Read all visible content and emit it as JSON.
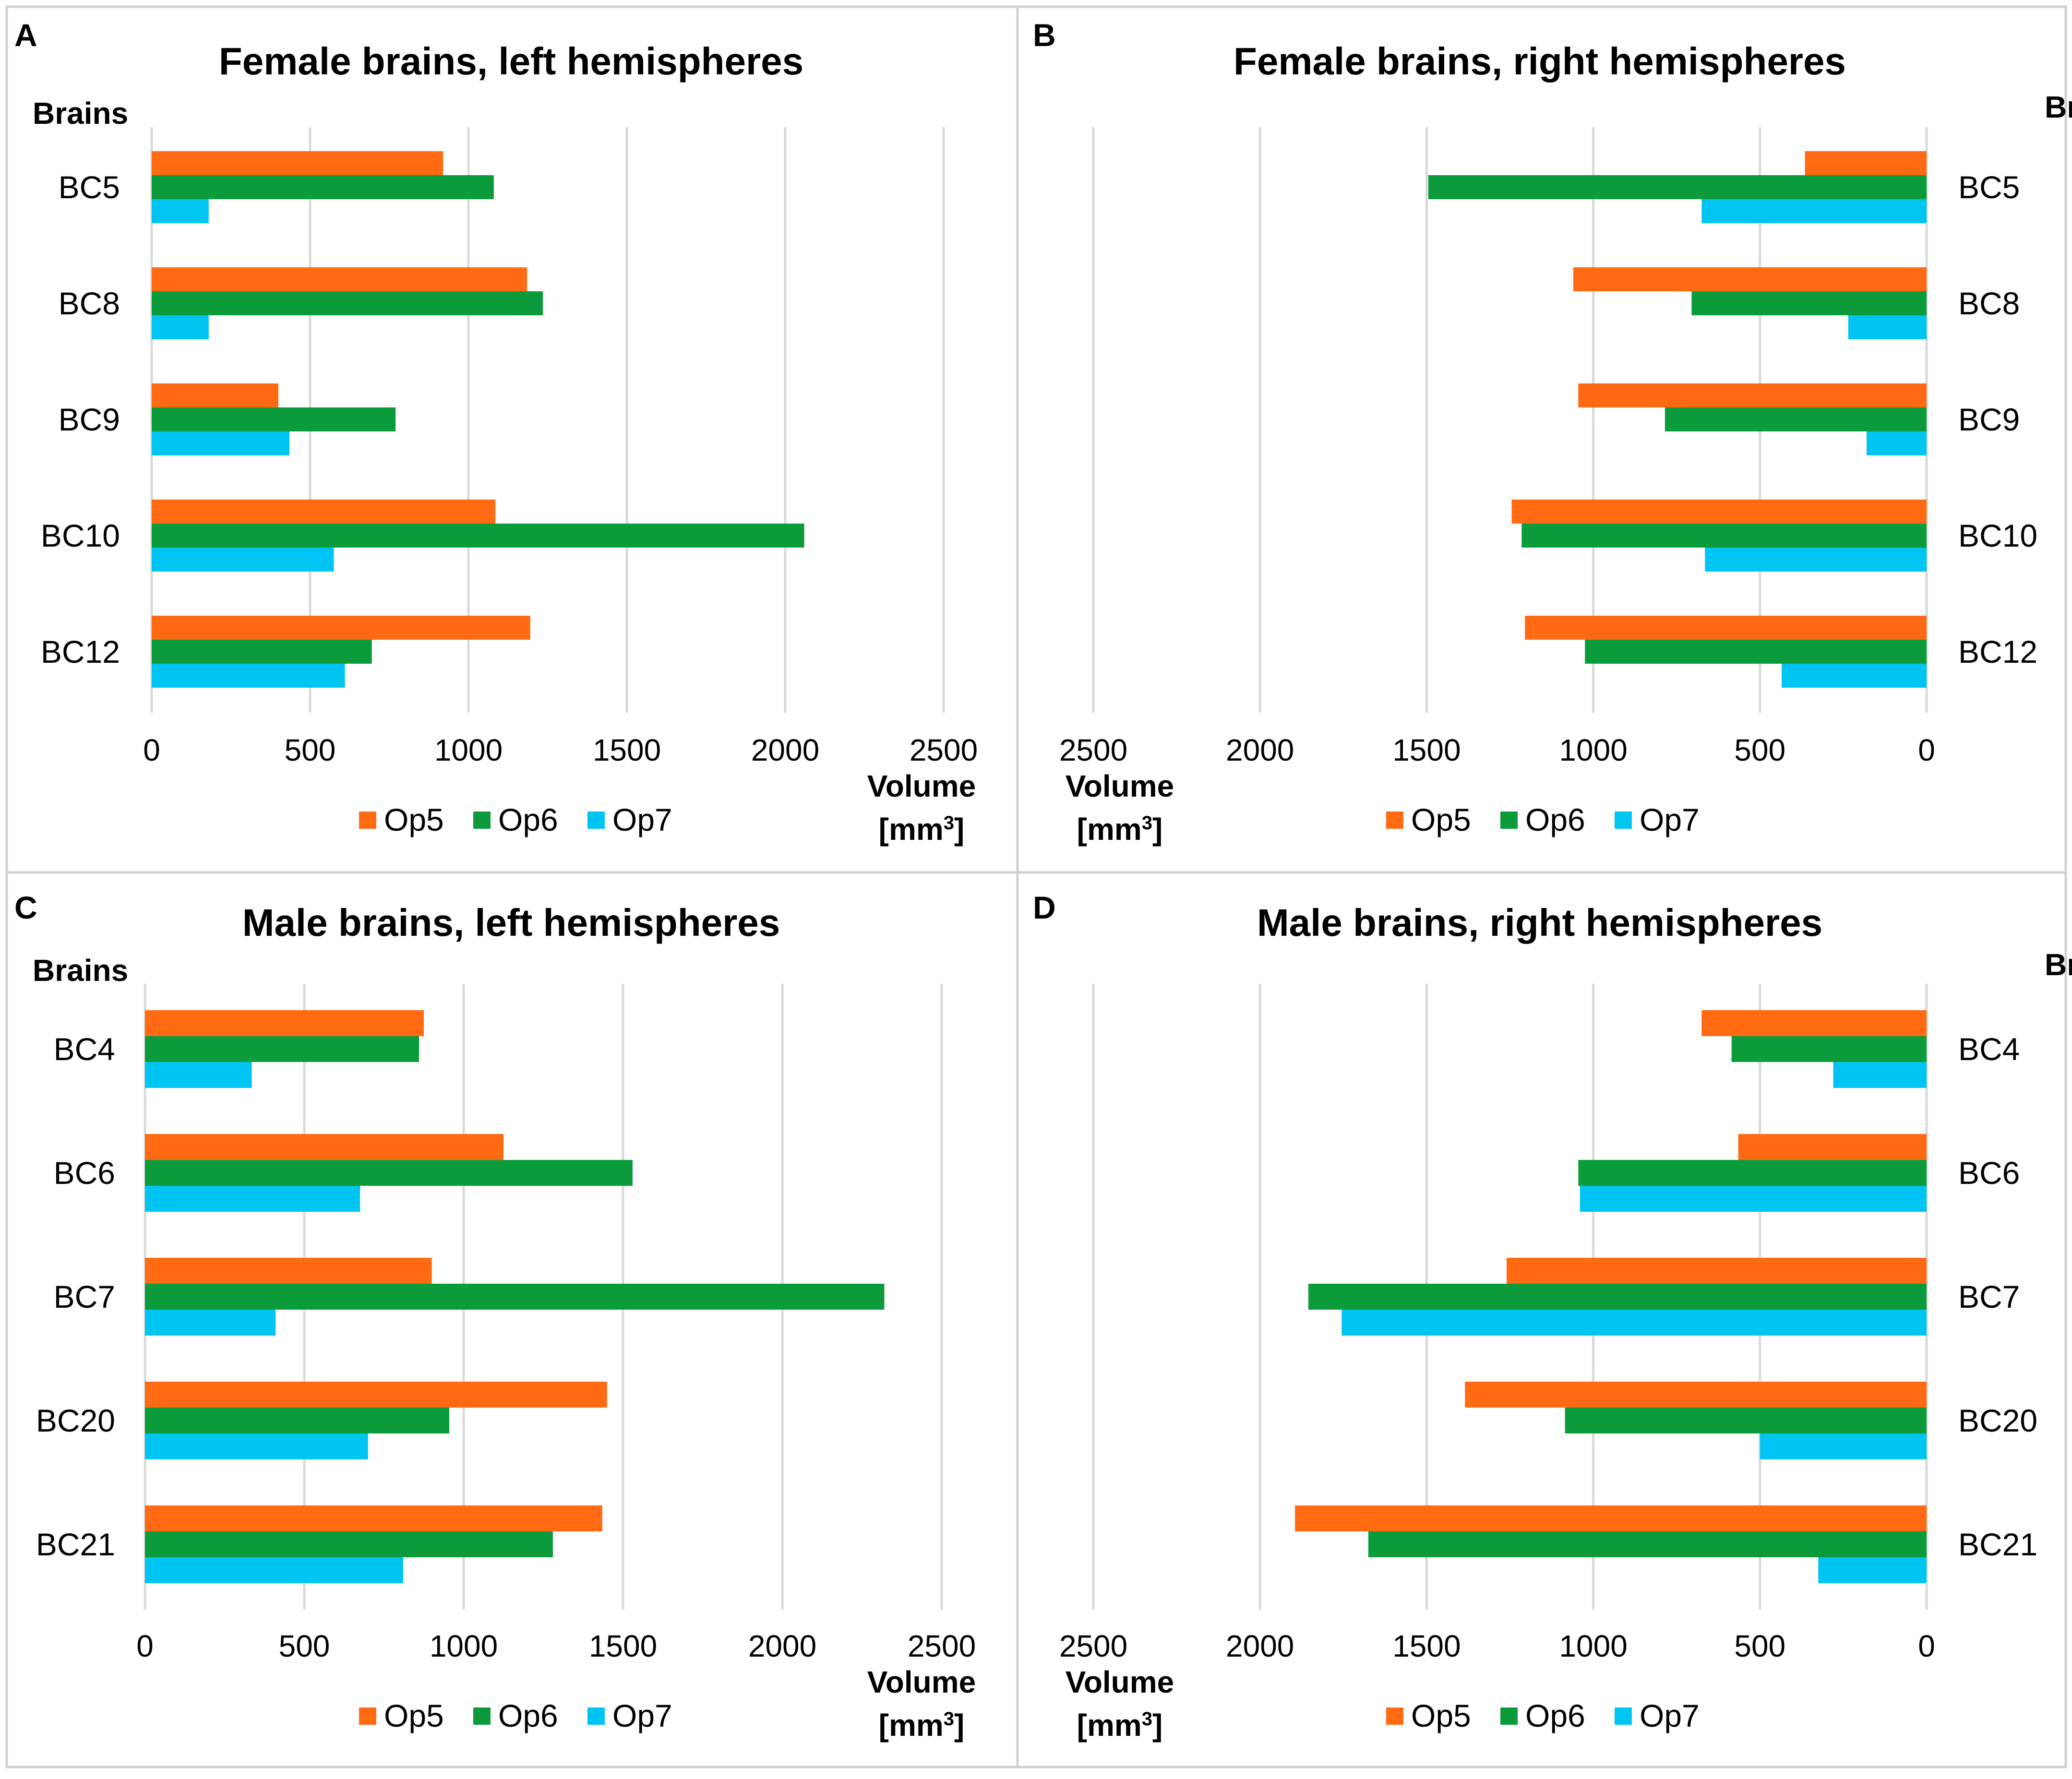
{
  "colors": {
    "Op5": "#ff6a13",
    "Op6": "#0c9b3b",
    "Op7": "#00c5f2"
  },
  "axis_unit": "Volume",
  "axis_unit_bracket_open": "[mm",
  "axis_unit_sup": "3",
  "axis_unit_bracket_close": "]",
  "chart_data": [
    {
      "panel": "A",
      "type": "bar",
      "orientation": "horizontal",
      "direction": "left-to-right",
      "title": "Female brains, left hemispheres",
      "ylabel": "Brains",
      "xlabel": "Volume [mm3]",
      "xlim": [
        0,
        2500
      ],
      "ticks": [
        0,
        500,
        1000,
        1500,
        2000,
        2500
      ],
      "legend": [
        "Op5",
        "Op6",
        "Op7"
      ],
      "categories": [
        "BC5",
        "BC8",
        "BC9",
        "BC10",
        "BC12"
      ],
      "series": [
        {
          "name": "Op5",
          "values": [
            920,
            1185,
            400,
            1085,
            1195
          ]
        },
        {
          "name": "Op6",
          "values": [
            1080,
            1235,
            770,
            2060,
            695
          ]
        },
        {
          "name": "Op7",
          "values": [
            180,
            180,
            435,
            575,
            610
          ]
        }
      ]
    },
    {
      "panel": "B",
      "type": "bar",
      "orientation": "horizontal",
      "direction": "right-to-left",
      "title": "Female brains, right hemispheres",
      "ylabel": "Brains",
      "xlabel": "Volume [mm3]",
      "xlim": [
        0,
        2500
      ],
      "ticks": [
        2500,
        2000,
        1500,
        1000,
        500,
        0
      ],
      "legend": [
        "Op5",
        "Op6",
        "Op7"
      ],
      "categories": [
        "BC5",
        "BC8",
        "BC9",
        "BC10",
        "BC12"
      ],
      "series": [
        {
          "name": "Op5",
          "values": [
            365,
            1060,
            1045,
            1245,
            1205
          ]
        },
        {
          "name": "Op6",
          "values": [
            1495,
            705,
            785,
            1215,
            1025
          ]
        },
        {
          "name": "Op7",
          "values": [
            675,
            235,
            180,
            665,
            435
          ]
        }
      ]
    },
    {
      "panel": "C",
      "type": "bar",
      "orientation": "horizontal",
      "direction": "left-to-right",
      "title": "Male brains, left hemispheres",
      "ylabel": "Brains",
      "xlabel": "Volume [mm3]",
      "xlim": [
        0,
        2500
      ],
      "ticks": [
        0,
        500,
        1000,
        1500,
        2000,
        2500
      ],
      "legend": [
        "Op5",
        "Op6",
        "Op7"
      ],
      "categories": [
        "BC4",
        "BC6",
        "BC7",
        "BC20",
        "BC21"
      ],
      "series": [
        {
          "name": "Op5",
          "values": [
            875,
            1125,
            900,
            1450,
            1435
          ]
        },
        {
          "name": "Op6",
          "values": [
            860,
            1530,
            2320,
            955,
            1280
          ]
        },
        {
          "name": "Op7",
          "values": [
            335,
            675,
            410,
            700,
            810
          ]
        }
      ]
    },
    {
      "panel": "D",
      "type": "bar",
      "orientation": "horizontal",
      "direction": "right-to-left",
      "title": "Male brains, right hemispheres",
      "ylabel": "Brains",
      "xlabel": "Volume [mm3]",
      "xlim": [
        0,
        2500
      ],
      "ticks": [
        2500,
        2000,
        1500,
        1000,
        500,
        0
      ],
      "legend": [
        "Op5",
        "Op6",
        "Op7"
      ],
      "categories": [
        "BC4",
        "BC6",
        "BC7",
        "BC20",
        "BC21"
      ],
      "series": [
        {
          "name": "Op5",
          "values": [
            675,
            565,
            1260,
            1385,
            1895
          ]
        },
        {
          "name": "Op6",
          "values": [
            585,
            1045,
            1855,
            1085,
            1675
          ]
        },
        {
          "name": "Op7",
          "values": [
            280,
            1040,
            1755,
            500,
            325
          ]
        }
      ]
    }
  ]
}
